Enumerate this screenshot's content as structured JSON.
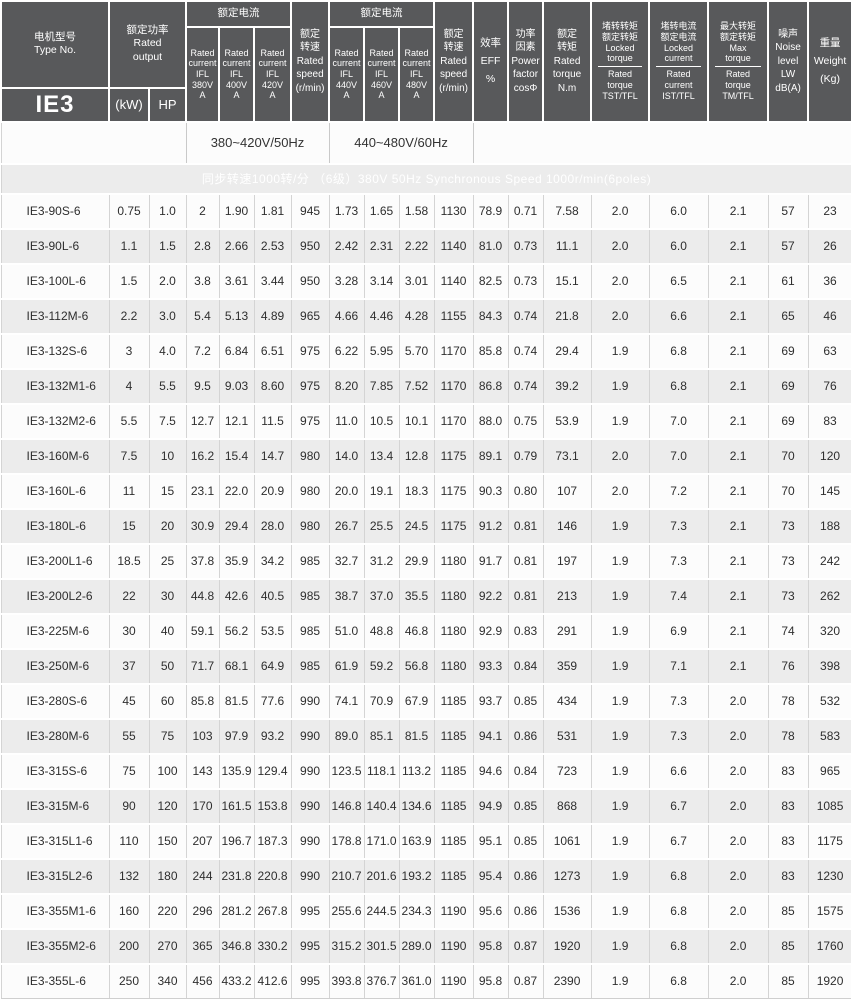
{
  "colors": {
    "header_bg": "#58595b",
    "banner_bg": "#9b9b9b",
    "row_alt_bg": "#ececec",
    "grid_line": "#d4d4d4",
    "header_text": "#ffffff"
  },
  "table": {
    "columns": {
      "type_no": {
        "title": "电机型号\nType No.",
        "series": "IE3"
      },
      "rated_output": {
        "title": "额定功率\nRated\noutput",
        "kw": "(kW)",
        "hp": "HP"
      },
      "rated_current_50": {
        "title": "额定电流",
        "c380": "Rated\ncurrent\nIFL\n380V\nA",
        "c400": "Rated\ncurrent\nIFL\n400V\nA",
        "c420": "Rated\ncurrent\nIFL\n420V\nA"
      },
      "rated_speed_50": {
        "title": "额定\n转速\nRated\nspeed\n(r/min)"
      },
      "rated_current_60": {
        "title": "额定电流",
        "c440": "Rated\ncurrent\nIFL\n440V\nA",
        "c460": "Rated\ncurrent\nIFL\n460V\nA",
        "c480": "Rated\ncurrent\nIFL\n480V\nA"
      },
      "rated_speed_60": {
        "title": "额定\n转速\nRated\nspeed\n(r/min)"
      },
      "efficiency": {
        "title": "效率\nEFF\n%"
      },
      "power_factor": {
        "title": "功率\n因素\nPower\nfactor\ncosΦ"
      },
      "rated_torque": {
        "title": "额定\n转矩\nRated\ntorque\nN.m"
      },
      "locked_torque": {
        "top": "堵转转矩\n额定转矩\nLocked\ntorque",
        "bottom": "Rated\ntorque\nTST/TFL"
      },
      "locked_current": {
        "top": "堵转电流\n额定电流\nLocked\ncurrent",
        "bottom": "Rated\ncurrent\nIST/TFL"
      },
      "max_torque": {
        "top": "最大转矩\n额定转矩\nMax\ntorque",
        "bottom": "Rated\ntorque\nTM/TFL"
      },
      "noise": {
        "title": "噪声\nNoise\nlevel\nLW\ndB(A)"
      },
      "weight": {
        "title": "重量\nWeight\n(Kg)"
      }
    },
    "voltage_bands": {
      "b50": "380~420V/50Hz",
      "b60": "440~480V/60Hz"
    },
    "section_banner": "同步转速1000转/分 （6级）380V 50Hz Synchronous Speed 1000r/min(6poles)",
    "rows": [
      [
        "IE3-90S-6",
        "0.75",
        "1.0",
        "2",
        "1.90",
        "1.81",
        "945",
        "1.73",
        "1.65",
        "1.58",
        "1130",
        "78.9",
        "0.71",
        "7.58",
        "2.0",
        "6.0",
        "2.1",
        "57",
        "23"
      ],
      [
        "IE3-90L-6",
        "1.1",
        "1.5",
        "2.8",
        "2.66",
        "2.53",
        "950",
        "2.42",
        "2.31",
        "2.22",
        "1140",
        "81.0",
        "0.73",
        "11.1",
        "2.0",
        "6.0",
        "2.1",
        "57",
        "26"
      ],
      [
        "IE3-100L-6",
        "1.5",
        "2.0",
        "3.8",
        "3.61",
        "3.44",
        "950",
        "3.28",
        "3.14",
        "3.01",
        "1140",
        "82.5",
        "0.73",
        "15.1",
        "2.0",
        "6.5",
        "2.1",
        "61",
        "36"
      ],
      [
        "IE3-112M-6",
        "2.2",
        "3.0",
        "5.4",
        "5.13",
        "4.89",
        "965",
        "4.66",
        "4.46",
        "4.28",
        "1155",
        "84.3",
        "0.74",
        "21.8",
        "2.0",
        "6.6",
        "2.1",
        "65",
        "46"
      ],
      [
        "IE3-132S-6",
        "3",
        "4.0",
        "7.2",
        "6.84",
        "6.51",
        "975",
        "6.22",
        "5.95",
        "5.70",
        "1170",
        "85.8",
        "0.74",
        "29.4",
        "1.9",
        "6.8",
        "2.1",
        "69",
        "63"
      ],
      [
        "IE3-132M1-6",
        "4",
        "5.5",
        "9.5",
        "9.03",
        "8.60",
        "975",
        "8.20",
        "7.85",
        "7.52",
        "1170",
        "86.8",
        "0.74",
        "39.2",
        "1.9",
        "6.8",
        "2.1",
        "69",
        "76"
      ],
      [
        "IE3-132M2-6",
        "5.5",
        "7.5",
        "12.7",
        "12.1",
        "11.5",
        "975",
        "11.0",
        "10.5",
        "10.1",
        "1170",
        "88.0",
        "0.75",
        "53.9",
        "1.9",
        "7.0",
        "2.1",
        "69",
        "83"
      ],
      [
        "IE3-160M-6",
        "7.5",
        "10",
        "16.2",
        "15.4",
        "14.7",
        "980",
        "14.0",
        "13.4",
        "12.8",
        "1175",
        "89.1",
        "0.79",
        "73.1",
        "2.0",
        "7.0",
        "2.1",
        "70",
        "120"
      ],
      [
        "IE3-160L-6",
        "11",
        "15",
        "23.1",
        "22.0",
        "20.9",
        "980",
        "20.0",
        "19.1",
        "18.3",
        "1175",
        "90.3",
        "0.80",
        "107",
        "2.0",
        "7.2",
        "2.1",
        "70",
        "145"
      ],
      [
        "IE3-180L-6",
        "15",
        "20",
        "30.9",
        "29.4",
        "28.0",
        "980",
        "26.7",
        "25.5",
        "24.5",
        "1175",
        "91.2",
        "0.81",
        "146",
        "1.9",
        "7.3",
        "2.1",
        "73",
        "188"
      ],
      [
        "IE3-200L1-6",
        "18.5",
        "25",
        "37.8",
        "35.9",
        "34.2",
        "985",
        "32.7",
        "31.2",
        "29.9",
        "1180",
        "91.7",
        "0.81",
        "197",
        "1.9",
        "7.3",
        "2.1",
        "73",
        "242"
      ],
      [
        "IE3-200L2-6",
        "22",
        "30",
        "44.8",
        "42.6",
        "40.5",
        "985",
        "38.7",
        "37.0",
        "35.5",
        "1180",
        "92.2",
        "0.81",
        "213",
        "1.9",
        "7.4",
        "2.1",
        "73",
        "262"
      ],
      [
        "IE3-225M-6",
        "30",
        "40",
        "59.1",
        "56.2",
        "53.5",
        "985",
        "51.0",
        "48.8",
        "46.8",
        "1180",
        "92.9",
        "0.83",
        "291",
        "1.9",
        "6.9",
        "2.1",
        "74",
        "320"
      ],
      [
        "IE3-250M-6",
        "37",
        "50",
        "71.7",
        "68.1",
        "64.9",
        "985",
        "61.9",
        "59.2",
        "56.8",
        "1180",
        "93.3",
        "0.84",
        "359",
        "1.9",
        "7.1",
        "2.1",
        "76",
        "398"
      ],
      [
        "IE3-280S-6",
        "45",
        "60",
        "85.8",
        "81.5",
        "77.6",
        "990",
        "74.1",
        "70.9",
        "67.9",
        "1185",
        "93.7",
        "0.85",
        "434",
        "1.9",
        "7.3",
        "2.0",
        "78",
        "532"
      ],
      [
        "IE3-280M-6",
        "55",
        "75",
        "103",
        "97.9",
        "93.2",
        "990",
        "89.0",
        "85.1",
        "81.5",
        "1185",
        "94.1",
        "0.86",
        "531",
        "1.9",
        "7.3",
        "2.0",
        "78",
        "583"
      ],
      [
        "IE3-315S-6",
        "75",
        "100",
        "143",
        "135.9",
        "129.4",
        "990",
        "123.5",
        "118.1",
        "113.2",
        "1185",
        "94.6",
        "0.84",
        "723",
        "1.9",
        "6.6",
        "2.0",
        "83",
        "965"
      ],
      [
        "IE3-315M-6",
        "90",
        "120",
        "170",
        "161.5",
        "153.8",
        "990",
        "146.8",
        "140.4",
        "134.6",
        "1185",
        "94.9",
        "0.85",
        "868",
        "1.9",
        "6.7",
        "2.0",
        "83",
        "1085"
      ],
      [
        "IE3-315L1-6",
        "110",
        "150",
        "207",
        "196.7",
        "187.3",
        "990",
        "178.8",
        "171.0",
        "163.9",
        "1185",
        "95.1",
        "0.85",
        "1061",
        "1.9",
        "6.7",
        "2.0",
        "83",
        "1175"
      ],
      [
        "IE3-315L2-6",
        "132",
        "180",
        "244",
        "231.8",
        "220.8",
        "990",
        "210.7",
        "201.6",
        "193.2",
        "1185",
        "95.4",
        "0.86",
        "1273",
        "1.9",
        "6.8",
        "2.0",
        "83",
        "1230"
      ],
      [
        "IE3-355M1-6",
        "160",
        "220",
        "296",
        "281.2",
        "267.8",
        "995",
        "255.6",
        "244.5",
        "234.3",
        "1190",
        "95.6",
        "0.86",
        "1536",
        "1.9",
        "6.8",
        "2.0",
        "85",
        "1575"
      ],
      [
        "IE3-355M2-6",
        "200",
        "270",
        "365",
        "346.8",
        "330.2",
        "995",
        "315.2",
        "301.5",
        "289.0",
        "1190",
        "95.8",
        "0.87",
        "1920",
        "1.9",
        "6.8",
        "2.0",
        "85",
        "1760"
      ],
      [
        "IE3-355L-6",
        "250",
        "340",
        "456",
        "433.2",
        "412.6",
        "995",
        "393.8",
        "376.7",
        "361.0",
        "1190",
        "95.8",
        "0.87",
        "2390",
        "1.9",
        "6.8",
        "2.0",
        "85",
        "1920"
      ]
    ]
  }
}
